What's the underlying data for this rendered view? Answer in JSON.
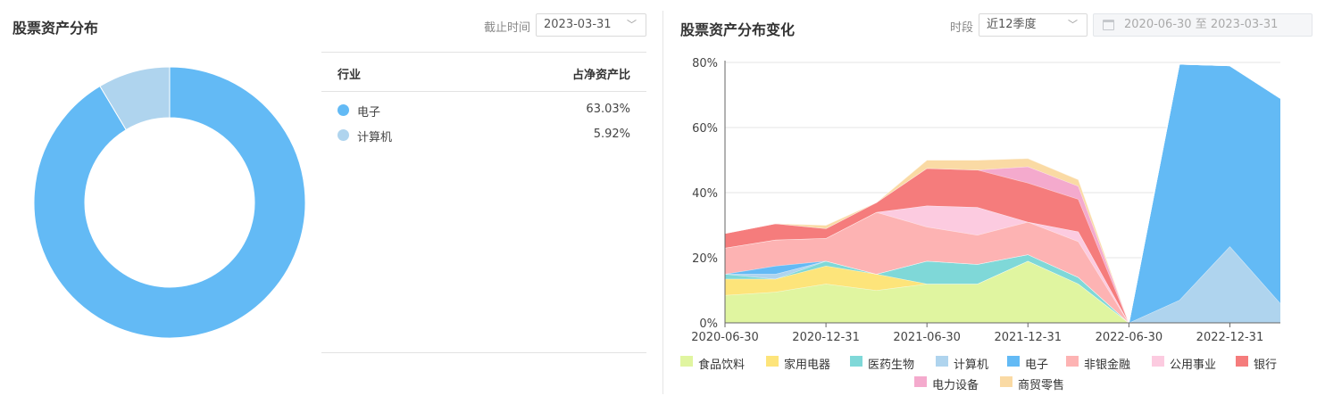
{
  "left": {
    "title": "股票资产分布",
    "date_label": "截止时间",
    "date_value": "2023-03-31",
    "table": {
      "col_industry": "行业",
      "col_ratio": "占净资产比",
      "rows": [
        {
          "name": "电子",
          "value": "63.03%",
          "color": "#63baf5"
        },
        {
          "name": "计算机",
          "value": "5.92%",
          "color": "#afd4ee"
        }
      ]
    }
  },
  "right": {
    "title": "股票资产分布变化",
    "period_label": "时段",
    "period_value": "近12季度",
    "range_start": "2020-06-30",
    "range_sep": "至",
    "range_end": "2023-03-31"
  },
  "chart_data": [
    {
      "type": "pie",
      "donut": true,
      "labels": [
        "电子",
        "计算机"
      ],
      "values": [
        63.03,
        5.92
      ],
      "colors": [
        "#63baf5",
        "#afd4ee"
      ]
    },
    {
      "type": "area",
      "stacked": true,
      "x": [
        "2020-06-30",
        "2020-09-30",
        "2020-12-31",
        "2021-03-31",
        "2021-06-30",
        "2021-09-30",
        "2021-12-31",
        "2022-03-31",
        "2022-06-30",
        "2022-09-30",
        "2022-12-31",
        "2023-03-31"
      ],
      "x_tick_labels": [
        "2020-06-30",
        "2020-12-31",
        "2021-06-30",
        "2021-12-31",
        "2022-06-30",
        "2022-12-31"
      ],
      "ylim": [
        0,
        80
      ],
      "y_ticks": [
        "0%",
        "20%",
        "40%",
        "60%",
        "80%"
      ],
      "grid": true,
      "legend_position": "bottom",
      "series": [
        {
          "name": "食品饮料",
          "color": "#e0f5a0",
          "values": [
            8.5,
            9.5,
            12,
            10,
            12,
            12,
            19,
            12,
            0,
            0,
            0,
            0
          ]
        },
        {
          "name": "家用电器",
          "color": "#fde47a",
          "values": [
            5,
            4,
            5.5,
            5,
            0,
            0,
            0,
            0,
            0,
            0,
            0,
            0
          ]
        },
        {
          "name": "医药生物",
          "color": "#7fd8d8",
          "values": [
            1.5,
            0,
            1.5,
            0,
            7,
            6,
            2,
            2,
            0,
            0,
            0,
            0
          ]
        },
        {
          "name": "计算机",
          "color": "#afd4ee",
          "values": [
            0,
            1.5,
            0,
            0,
            0,
            0,
            0,
            0,
            0,
            7,
            23.5,
            6
          ]
        },
        {
          "name": "电子",
          "color": "#63baf5",
          "values": [
            0,
            2.5,
            0,
            0,
            0,
            0,
            0,
            0,
            0,
            72.5,
            55.5,
            63
          ]
        },
        {
          "name": "非银金融",
          "color": "#fdb3b3",
          "values": [
            8,
            8,
            7,
            19,
            10.5,
            9,
            10,
            11,
            0,
            0,
            0,
            0
          ]
        },
        {
          "name": "公用事业",
          "color": "#fccbe0",
          "values": [
            0,
            0,
            0,
            0,
            6.5,
            8.5,
            0,
            3,
            0,
            0,
            0,
            0
          ]
        },
        {
          "name": "银行",
          "color": "#f57c7c",
          "values": [
            4.5,
            5,
            3,
            3,
            11.5,
            11.5,
            12,
            10,
            0,
            0,
            0,
            0
          ]
        },
        {
          "name": "电力设备",
          "color": "#f4aacd",
          "values": [
            0,
            0,
            0,
            0,
            0,
            0,
            5,
            4,
            0,
            0,
            0,
            0
          ]
        },
        {
          "name": "商贸零售",
          "color": "#fadaa4",
          "values": [
            0,
            0,
            1,
            0,
            2.5,
            3,
            2.5,
            2,
            0,
            0,
            0,
            0
          ]
        }
      ]
    }
  ]
}
